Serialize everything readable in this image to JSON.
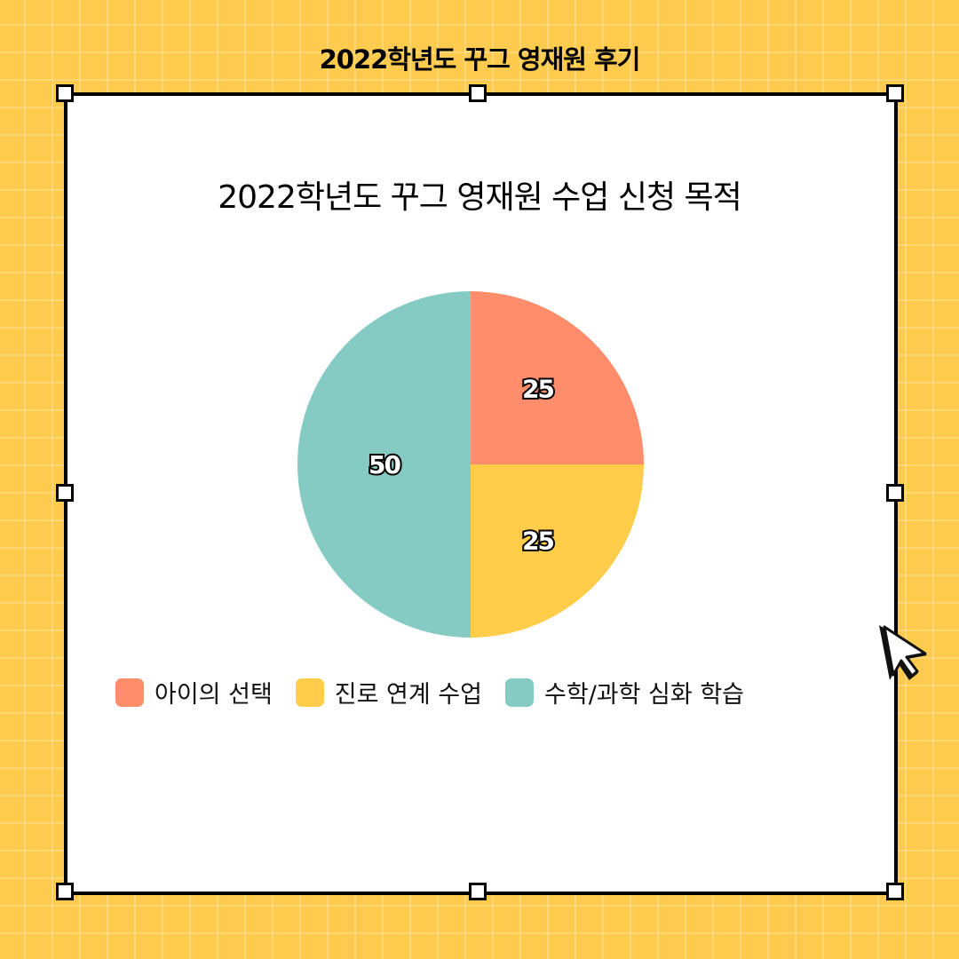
{
  "header": {
    "title": "2022학년도 꾸그 영재원 후기"
  },
  "chart_data": {
    "type": "pie",
    "title": "2022학년도 꾸그 영재원 수업 신청 목적",
    "categories": [
      "아이의 선택",
      "진로 연계 수업",
      "수학/과학 심화 학습"
    ],
    "values": [
      25,
      25,
      50
    ],
    "labels": [
      "25",
      "25",
      "50"
    ],
    "colors": [
      "#FF8C6B",
      "#FFCD4A",
      "#85CBC4"
    ],
    "legend_position": "bottom"
  },
  "icons": {
    "cursor": "mouse-pointer-icon"
  }
}
